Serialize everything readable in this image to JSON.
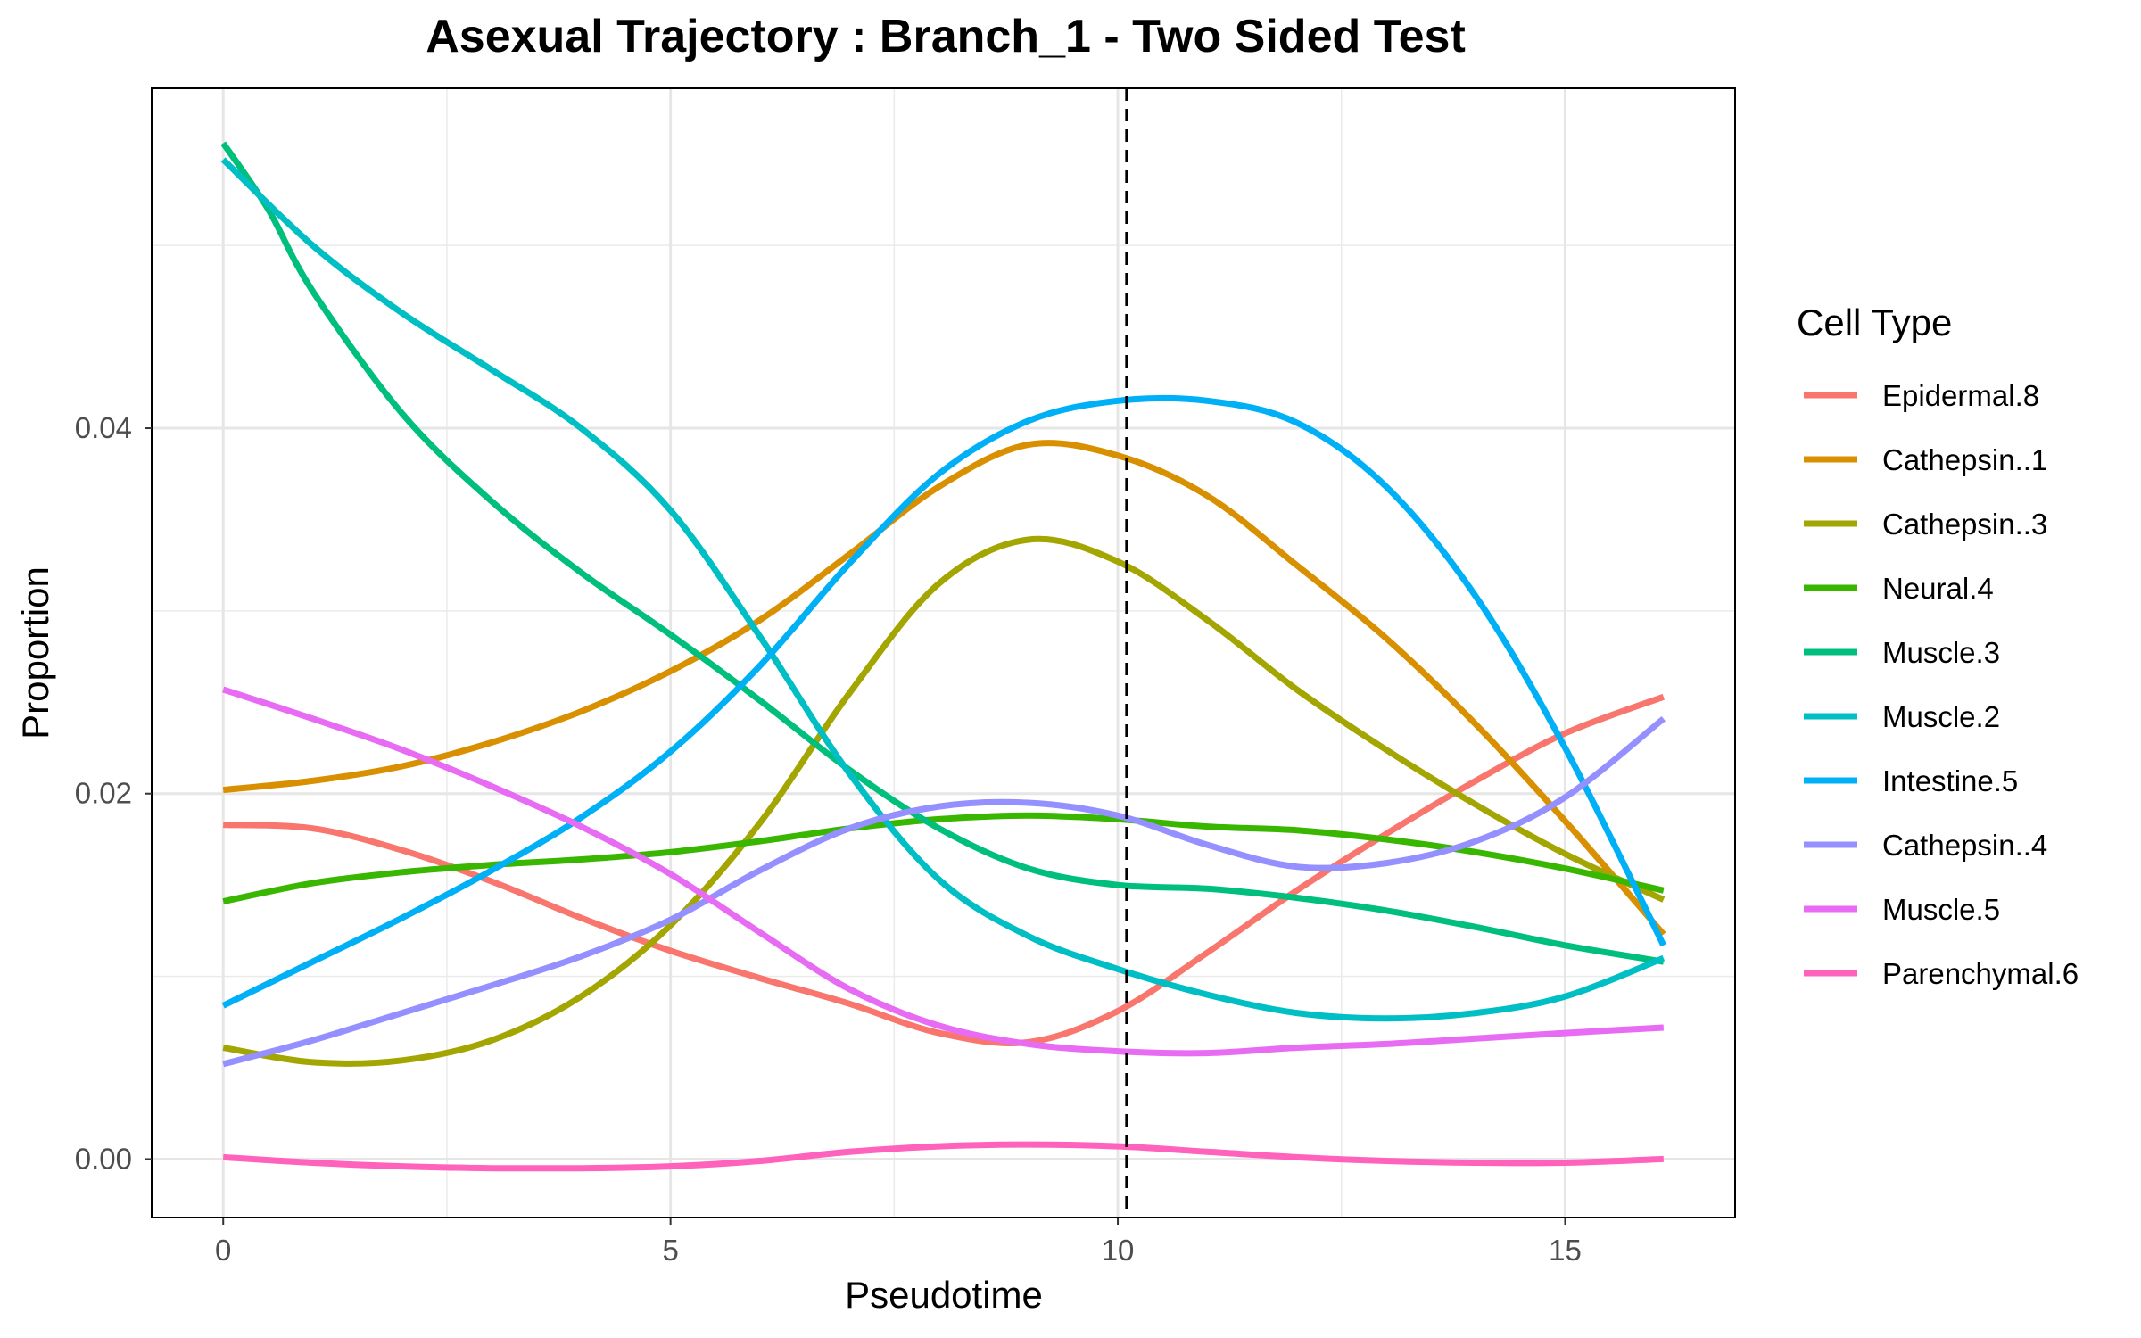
{
  "chart_data": {
    "type": "line",
    "title": "Asexual Trajectory : Branch_1 - Two Sided Test",
    "xlabel": "Pseudotime",
    "ylabel": "Proportion",
    "xlim": [
      -0.8,
      16.9
    ],
    "ylim": [
      -0.0032,
      0.0586
    ],
    "x_ticks": [
      0,
      5,
      10,
      15
    ],
    "x_tick_labels": [
      "0",
      "5",
      "10",
      "15"
    ],
    "y_ticks": [
      0.0,
      0.02,
      0.04
    ],
    "y_tick_labels": [
      "0.00",
      "0.02",
      "0.04"
    ],
    "grid": true,
    "vline": {
      "x": 10.1,
      "style": "dashed",
      "color": "#000000"
    },
    "legend": {
      "title": "Cell Type",
      "position": "right"
    },
    "series": [
      {
        "name": "Epidermal.8",
        "color": "#F8766D",
        "x": [
          0,
          1,
          2,
          3,
          4,
          5,
          6,
          7,
          8,
          9,
          10,
          11,
          12,
          13,
          14,
          15,
          16.1
        ],
        "y": [
          0.0183,
          0.0181,
          0.0169,
          0.0152,
          0.0132,
          0.0114,
          0.0099,
          0.0085,
          0.0069,
          0.0064,
          0.0081,
          0.0113,
          0.0147,
          0.0178,
          0.0207,
          0.0233,
          0.0253
        ]
      },
      {
        "name": "Cathepsin..1",
        "color": "#D89000",
        "x": [
          0,
          1,
          2,
          3,
          4,
          5,
          6,
          7,
          8,
          9,
          10,
          11,
          12,
          13,
          14,
          15,
          16.1
        ],
        "y": [
          0.0202,
          0.0207,
          0.0215,
          0.0228,
          0.0245,
          0.0267,
          0.0295,
          0.0331,
          0.0368,
          0.0391,
          0.0385,
          0.0363,
          0.0325,
          0.0285,
          0.0238,
          0.0185,
          0.0123
        ]
      },
      {
        "name": "Cathepsin..3",
        "color": "#A3A500",
        "x": [
          0,
          1,
          2,
          3,
          4,
          5,
          6,
          7,
          8,
          9,
          10,
          11,
          12,
          13,
          14,
          15,
          16.1
        ],
        "y": [
          0.0061,
          0.0053,
          0.0054,
          0.0065,
          0.0089,
          0.0128,
          0.0184,
          0.0255,
          0.0315,
          0.0339,
          0.0327,
          0.0295,
          0.0257,
          0.0224,
          0.0194,
          0.0167,
          0.0142
        ]
      },
      {
        "name": "Neural.4",
        "color": "#39B600",
        "x": [
          0,
          1,
          2,
          3,
          4,
          5,
          6,
          7,
          8,
          9,
          10,
          11,
          12,
          13,
          14,
          15,
          16.1
        ],
        "y": [
          0.0141,
          0.0151,
          0.0157,
          0.0161,
          0.0164,
          0.0168,
          0.0174,
          0.0181,
          0.0186,
          0.0188,
          0.0186,
          0.0182,
          0.018,
          0.0175,
          0.0168,
          0.0159,
          0.0147
        ]
      },
      {
        "name": "Muscle.3",
        "color": "#00BF7D",
        "x": [
          0,
          0.5,
          1,
          2,
          3,
          4,
          5,
          6,
          7,
          8,
          9,
          10,
          11,
          12,
          13,
          14,
          15,
          16.1
        ],
        "y": [
          0.0556,
          0.052,
          0.0475,
          0.0408,
          0.036,
          0.0321,
          0.0287,
          0.0251,
          0.0213,
          0.0181,
          0.0159,
          0.015,
          0.0148,
          0.0143,
          0.0136,
          0.0127,
          0.0117,
          0.0108
        ]
      },
      {
        "name": "Muscle.2",
        "color": "#00BFC4",
        "x": [
          0,
          1,
          2,
          3,
          4,
          5,
          6,
          7,
          8,
          9,
          10,
          11,
          12,
          13,
          14,
          15,
          16.1
        ],
        "y": [
          0.0547,
          0.05,
          0.0463,
          0.0432,
          0.04,
          0.0355,
          0.0286,
          0.0211,
          0.0153,
          0.0122,
          0.0104,
          0.009,
          0.008,
          0.0077,
          0.008,
          0.0089,
          0.011
        ]
      },
      {
        "name": "Intestine.5",
        "color": "#00B0F6",
        "x": [
          0,
          1,
          2,
          3,
          4,
          5,
          6,
          7,
          8,
          9,
          10,
          11,
          12,
          13,
          14,
          15,
          16.1
        ],
        "y": [
          0.0084,
          0.0108,
          0.0132,
          0.0158,
          0.0187,
          0.0223,
          0.027,
          0.0326,
          0.0375,
          0.0404,
          0.0415,
          0.0415,
          0.0403,
          0.0368,
          0.0308,
          0.0225,
          0.0117
        ]
      },
      {
        "name": "Cathepsin..4",
        "color": "#9590FF",
        "x": [
          0,
          1,
          2,
          3,
          4,
          5,
          6,
          7,
          8,
          9,
          10,
          11,
          12,
          13,
          14,
          15,
          16.1
        ],
        "y": [
          0.0052,
          0.0065,
          0.008,
          0.0095,
          0.0111,
          0.0131,
          0.0158,
          0.0181,
          0.0193,
          0.0195,
          0.0188,
          0.0172,
          0.016,
          0.0162,
          0.0174,
          0.0198,
          0.0241
        ]
      },
      {
        "name": "Muscle.5",
        "color": "#E76BF3",
        "x": [
          0,
          1,
          2,
          3,
          4,
          5,
          6,
          7,
          8,
          9,
          10,
          11,
          12,
          13,
          14,
          15,
          16.1
        ],
        "y": [
          0.0257,
          0.0241,
          0.0224,
          0.0204,
          0.0182,
          0.0156,
          0.0124,
          0.0093,
          0.0073,
          0.0063,
          0.0059,
          0.0058,
          0.0061,
          0.0063,
          0.0066,
          0.0069,
          0.0072
        ]
      },
      {
        "name": "Parenchymal.6",
        "color": "#FF62BC",
        "x": [
          0,
          1,
          2,
          3,
          4,
          5,
          6,
          7,
          8,
          9,
          10,
          11,
          12,
          13,
          14,
          15,
          16.1
        ],
        "y": [
          0.0001,
          -0.0002,
          -0.0004,
          -0.0005,
          -0.0005,
          -0.0004,
          -0.0001,
          0.0004,
          0.0007,
          0.0008,
          0.0007,
          0.0004,
          0.0001,
          -0.0001,
          -0.0002,
          -0.0002,
          0.0
        ]
      }
    ]
  }
}
